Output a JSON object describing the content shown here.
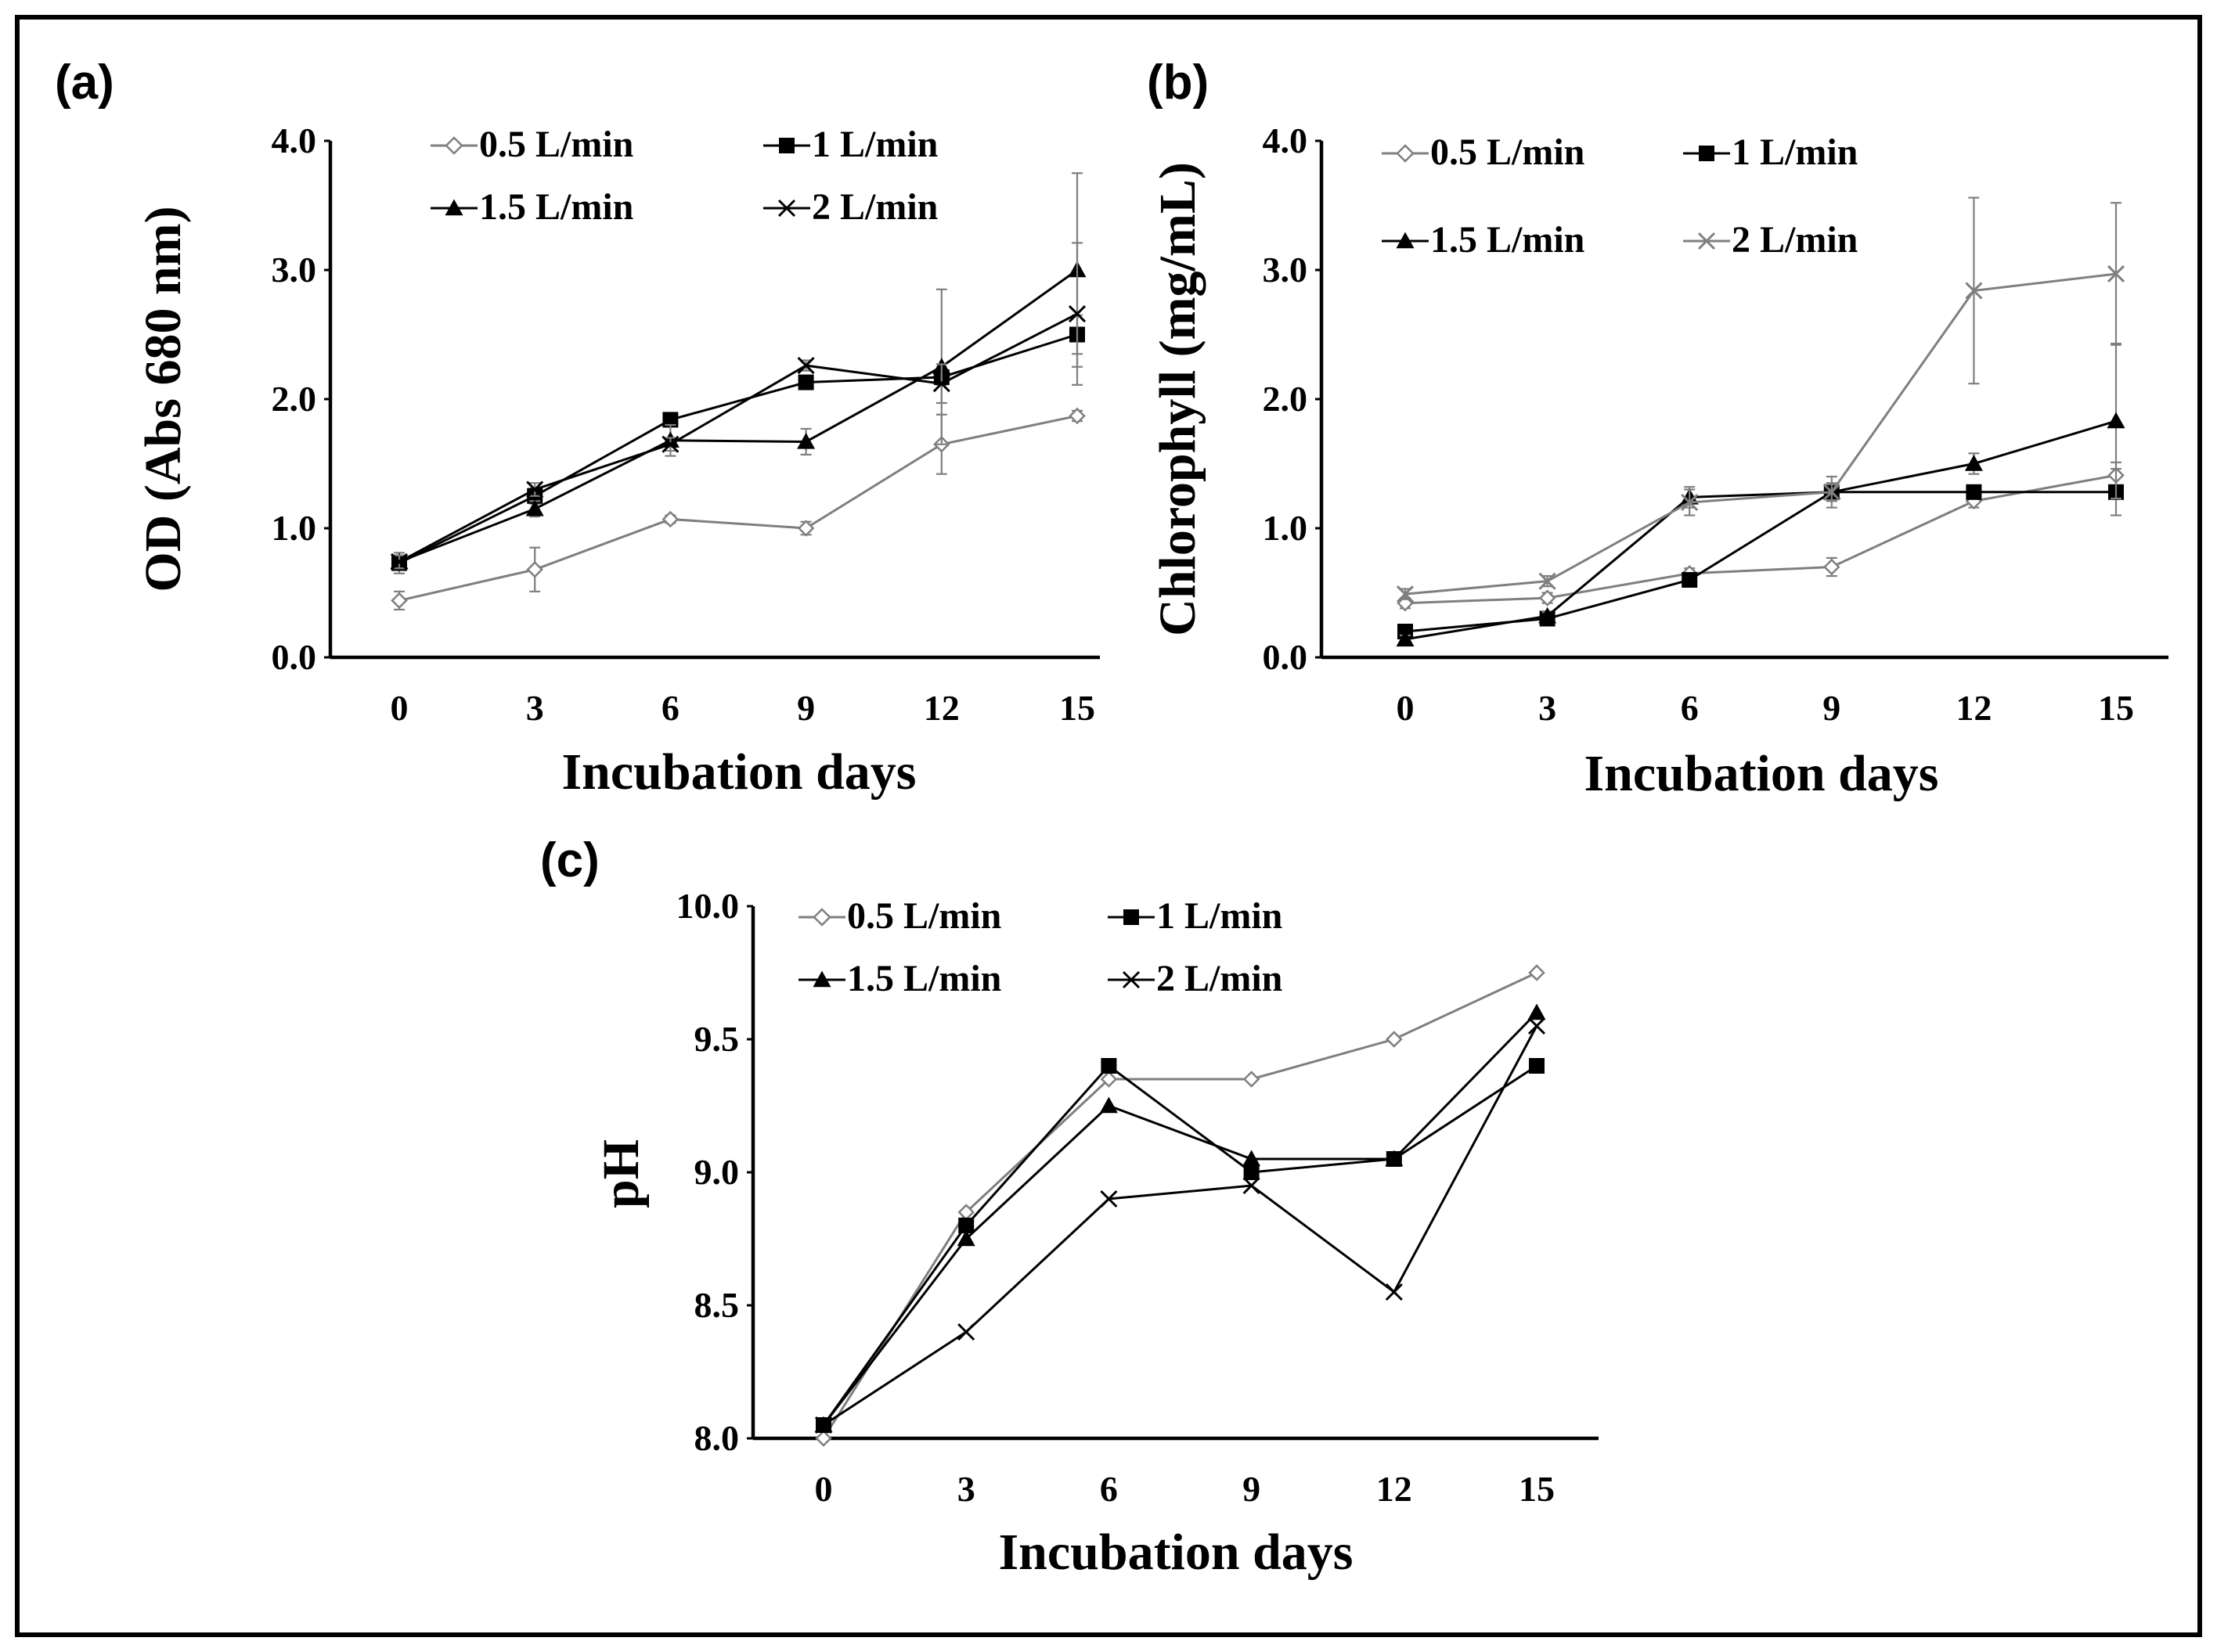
{
  "figure": {
    "panels": [
      {
        "label": "(a)"
      },
      {
        "label": "(b)"
      },
      {
        "label": "(c)"
      }
    ]
  },
  "chart_data": [
    {
      "type": "line",
      "panel": "(a)",
      "title": "",
      "xlabel": "Incubation days",
      "ylabel": "OD (Abs  680 nm)",
      "x": [
        0,
        3,
        6,
        9,
        12,
        15
      ],
      "x_ticks": [
        "0",
        "3",
        "6",
        "9",
        "12",
        "15"
      ],
      "ylim": [
        0,
        4
      ],
      "y_ticks": [
        "0.0",
        "1.0",
        "2.0",
        "3.0",
        "4.0"
      ],
      "legend_position": "top",
      "series": [
        {
          "name": "0.5 L/min",
          "marker": "diamond-open",
          "color": "#7f7f7f",
          "values": [
            0.44,
            0.68,
            1.07,
            1.0,
            1.65,
            1.87
          ],
          "errors": [
            0.07,
            0.17,
            0.03,
            0.05,
            0.23,
            0.04
          ]
        },
        {
          "name": "1 L/min",
          "marker": "square",
          "color": "#000000",
          "values": [
            0.73,
            1.25,
            1.84,
            2.13,
            2.17,
            2.5
          ],
          "errors": [
            0.08,
            0.06,
            0.04,
            0.05,
            0.06,
            0.15
          ]
        },
        {
          "name": "1.5 L/min",
          "marker": "triangle",
          "color": "#000000",
          "values": [
            0.74,
            1.15,
            1.68,
            1.67,
            2.25,
            3.0
          ],
          "errors": [
            0.05,
            0.06,
            0.12,
            0.1,
            0.6,
            0.75
          ]
        },
        {
          "name": "2 L/min",
          "marker": "x",
          "color": "#000000",
          "values": [
            0.74,
            1.3,
            1.65,
            2.26,
            2.12,
            2.66
          ],
          "errors": [
            0.05,
            0.05,
            0.05,
            0.04,
            0.15,
            0.55
          ]
        }
      ]
    },
    {
      "type": "line",
      "panel": "(b)",
      "title": "",
      "xlabel": "Incubation days",
      "ylabel": "Chlorophyll (mg/mL)",
      "x": [
        0,
        3,
        6,
        9,
        12,
        15
      ],
      "x_ticks": [
        "0",
        "3",
        "6",
        "9",
        "12",
        "15"
      ],
      "ylim": [
        0,
        4
      ],
      "y_ticks": [
        "0.0",
        "1.0",
        "2.0",
        "3.0",
        "4.0"
      ],
      "legend_position": "top",
      "series": [
        {
          "name": "0.5 L/min",
          "marker": "diamond-open",
          "color": "#7f7f7f",
          "values": [
            0.42,
            0.46,
            0.65,
            0.7,
            1.21,
            1.41
          ],
          "errors": [
            0.04,
            0.04,
            0.04,
            0.07,
            0.05,
            0.1
          ]
        },
        {
          "name": "1 L/min",
          "marker": "square",
          "color": "#000000",
          "values": [
            0.2,
            0.3,
            0.6,
            1.28,
            1.28,
            1.28
          ],
          "errors": [
            0.03,
            0.03,
            0.04,
            0.12,
            0.05,
            0.18
          ]
        },
        {
          "name": "1.5 L/min",
          "marker": "triangle",
          "color": "#000000",
          "values": [
            0.14,
            0.32,
            1.24,
            1.28,
            1.5,
            1.83
          ],
          "errors": [
            0.03,
            0.03,
            0.08,
            0.06,
            0.08,
            0.6
          ]
        },
        {
          "name": "2 L/min",
          "marker": "x",
          "color": "#7f7f7f",
          "values": [
            0.49,
            0.59,
            1.2,
            1.28,
            2.84,
            2.97
          ],
          "errors": [
            0.04,
            0.04,
            0.1,
            0.07,
            0.72,
            0.55
          ]
        }
      ]
    },
    {
      "type": "line",
      "panel": "(c)",
      "title": "",
      "xlabel": "Incubation days",
      "ylabel": "pH",
      "x": [
        0,
        3,
        6,
        9,
        12,
        15
      ],
      "x_ticks": [
        "0",
        "3",
        "6",
        "9",
        "12",
        "15"
      ],
      "ylim": [
        8,
        10
      ],
      "y_ticks": [
        "8.0",
        "8.5",
        "9.0",
        "9.5",
        "10.0"
      ],
      "legend_position": "top",
      "series": [
        {
          "name": "0.5 L/min",
          "marker": "diamond-open",
          "color": "#7f7f7f",
          "values": [
            8.0,
            8.85,
            9.35,
            9.35,
            9.5,
            9.75
          ],
          "errors": []
        },
        {
          "name": "1 L/min",
          "marker": "square",
          "color": "#000000",
          "values": [
            8.05,
            8.8,
            9.4,
            9.0,
            9.05,
            9.4
          ],
          "errors": []
        },
        {
          "name": "1.5 L/min",
          "marker": "triangle",
          "color": "#000000",
          "values": [
            8.05,
            8.75,
            9.25,
            9.05,
            9.05,
            9.6
          ],
          "errors": []
        },
        {
          "name": "2 L/min",
          "marker": "x",
          "color": "#000000",
          "values": [
            8.05,
            8.4,
            8.9,
            8.95,
            8.55,
            9.55
          ],
          "errors": []
        }
      ]
    }
  ]
}
